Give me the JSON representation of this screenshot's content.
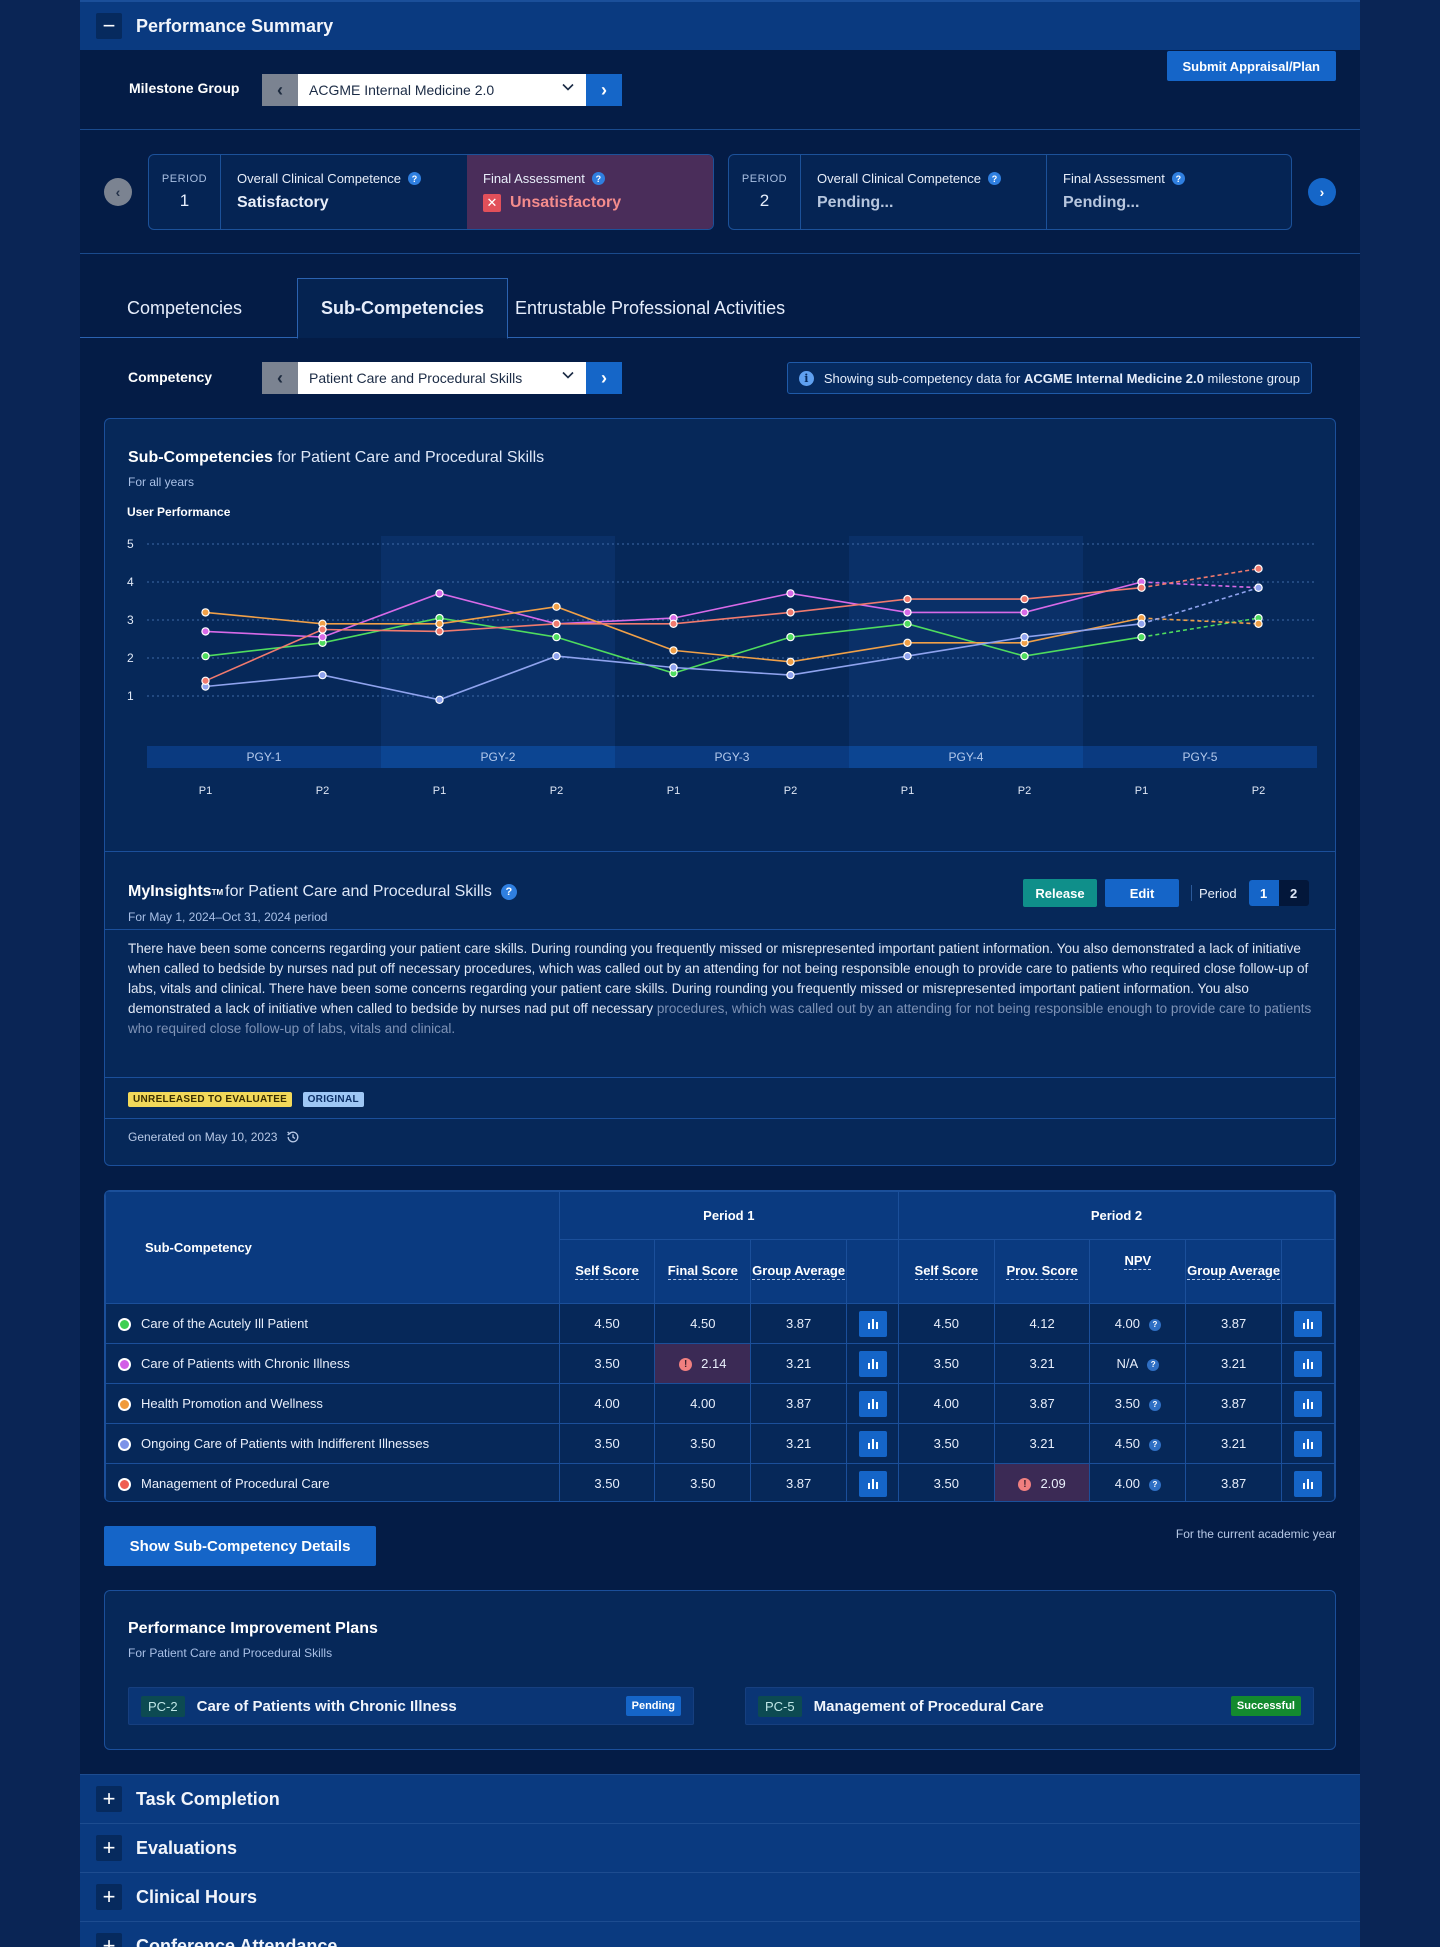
{
  "summary": {
    "title": "Performance Summary",
    "collapse_symbol": "−"
  },
  "milestone": {
    "label": "Milestone Group",
    "value": "ACGME Internal Medicine 2.0",
    "submit_label": "Submit Appraisal/Plan"
  },
  "periods": [
    {
      "label": "PERIOD",
      "number": "1",
      "occ_label": "Overall Clinical Competence",
      "occ_value": "Satisfactory",
      "fa_label": "Final Assessment",
      "fa_value": "Unsatisfactory"
    },
    {
      "label": "PERIOD",
      "number": "2",
      "occ_label": "Overall Clinical Competence",
      "occ_value": "Pending...",
      "fa_label": "Final Assessment",
      "fa_value": "Pending..."
    }
  ],
  "tabs": [
    {
      "label": "Competencies",
      "active": false
    },
    {
      "label": "Sub-Competencies",
      "active": true
    },
    {
      "label": "Entrustable Professional Activities",
      "active": false
    }
  ],
  "competency": {
    "label": "Competency",
    "value": "Patient Care and Procedural Skills",
    "note_prefix": "Showing sub-competency data for ",
    "note_bold": "ACGME Internal Medicine 2.0",
    "note_suffix": " milestone group"
  },
  "chart_panel": {
    "title_bold": "Sub-Competencies",
    "title_rest": " for Patient Care and Procedural Skills",
    "subtitle": "For all years"
  },
  "chart_data": {
    "type": "line",
    "ylabel": "User Performance",
    "ylim": [
      0,
      5
    ],
    "yticks": [
      1,
      2,
      3,
      4,
      5
    ],
    "groups": [
      "PGY-1",
      "PGY-2",
      "PGY-3",
      "PGY-4",
      "PGY-5"
    ],
    "categories": [
      "P1",
      "P2",
      "P1",
      "P2",
      "P1",
      "P2",
      "P1",
      "P2",
      "P1",
      "P2"
    ],
    "projected_from_index": 8,
    "series": [
      {
        "color": "#4fdc5e",
        "values": [
          2.05,
          2.4,
          3.05,
          2.55,
          1.6,
          2.55,
          2.9,
          2.05,
          2.55,
          3.05
        ]
      },
      {
        "color": "#d86ae8",
        "values": [
          2.7,
          2.55,
          3.7,
          2.9,
          3.05,
          3.7,
          3.2,
          3.2,
          4.0,
          3.85
        ]
      },
      {
        "color": "#f0a048",
        "values": [
          3.2,
          2.9,
          2.9,
          3.35,
          2.2,
          1.9,
          2.4,
          2.4,
          3.05,
          2.9
        ]
      },
      {
        "color": "#8fa3ee",
        "values": [
          1.25,
          1.55,
          0.9,
          2.05,
          1.75,
          1.55,
          2.05,
          2.55,
          2.9,
          3.85
        ]
      },
      {
        "color": "#f07a6e",
        "values": [
          1.4,
          2.75,
          2.7,
          2.9,
          2.9,
          3.2,
          3.55,
          3.55,
          3.85,
          4.35
        ]
      }
    ]
  },
  "insights": {
    "title_bold": "MyInsights",
    "tm": "TM",
    "title_rest": " for Patient Care and Procedural Skills",
    "subtitle": "For May 1, 2024–Oct 31, 2024 period",
    "release_label": "Release",
    "edit_label": "Edit",
    "period_label": "Period",
    "period_options": [
      "1",
      "2"
    ],
    "body": "There have been some concerns regarding your patient care skills. During rounding you frequently missed or misrepresented important patient information. You also demonstrated a lack of initiative when called to bedside by nurses nad put off necessary procedures, which was called out by an attending for not being responsible enough to provide care to patients who required close follow-up of labs, vitals and clinical. There have been some concerns regarding your patient care skills. During rounding you frequently missed or misrepresented important patient information. You also demonstrated a lack of initiative when called to bedside by nurses nad put off necessary",
    "body_fade": "procedures, which was called out by an attending for not being responsible enough to provide care to patients who required close follow-up of labs, vitals and clinical.",
    "tag_unreleased": "UNRELEASED TO EVALUATEE",
    "tag_original": "ORIGINAL",
    "generated": "Generated on May 10, 2023"
  },
  "table": {
    "col_name": "Sub-Competency",
    "period1": "Period 1",
    "period2": "Period 2",
    "p1_cols": [
      "Self Score",
      "Final Score",
      "Group Average"
    ],
    "p2_cols": [
      "Self Score",
      "Prov. Score",
      "NPV",
      "Group Average"
    ],
    "rows": [
      {
        "name": "Care of the Acutely Ill Patient",
        "color": "#3fcf52",
        "p1_self": "4.50",
        "p1_final": "4.50",
        "p1_avg": "3.87",
        "p2_self": "4.50",
        "p2_prov": "4.12",
        "npv": "4.00",
        "p2_avg": "3.87"
      },
      {
        "name": "Care of Patients with Chronic Illness",
        "color": "#d25ee6",
        "p1_self": "3.50",
        "p1_final": "2.14",
        "p1_avg": "3.21",
        "p2_self": "3.50",
        "p2_prov": "3.21",
        "npv": "N/A",
        "p2_avg": "3.21"
      },
      {
        "name": "Health Promotion and Wellness",
        "color": "#f09b3c",
        "p1_self": "4.00",
        "p1_final": "4.00",
        "p1_avg": "3.87",
        "p2_self": "4.00",
        "p2_prov": "3.87",
        "npv": "3.50",
        "p2_avg": "3.87"
      },
      {
        "name": "Ongoing Care of Patients with Indifferent Illnesses",
        "color": "#7d93e8",
        "p1_self": "3.50",
        "p1_final": "3.50",
        "p1_avg": "3.21",
        "p2_self": "3.50",
        "p2_prov": "3.21",
        "npv": "4.50",
        "p2_avg": "3.21"
      },
      {
        "name": "Management of Procedural Care",
        "color": "#ef5e52",
        "p1_self": "3.50",
        "p1_final": "3.50",
        "p1_avg": "3.87",
        "p2_self": "3.50",
        "p2_prov": "2.09",
        "npv": "4.00",
        "p2_avg": "3.87"
      }
    ]
  },
  "details_button": "Show Sub-Competency Details",
  "academic_note": "For the current academic year",
  "pip": {
    "title": "Performance Improvement Plans",
    "subtitle": "For Patient Care and Procedural Skills",
    "items": [
      {
        "code": "PC-2",
        "name": "Care of Patients with Chronic Illness",
        "status": "Pending",
        "status_color": "#1565c8"
      },
      {
        "code": "PC-5",
        "name": "Management of Procedural Care",
        "status": "Successful",
        "status_color": "#138a2e"
      }
    ]
  },
  "collapsed_sections": [
    {
      "title": "Task Completion"
    },
    {
      "title": "Evaluations"
    },
    {
      "title": "Clinical Hours"
    },
    {
      "title": "Conference Attendance"
    }
  ],
  "expand_symbol": "+"
}
